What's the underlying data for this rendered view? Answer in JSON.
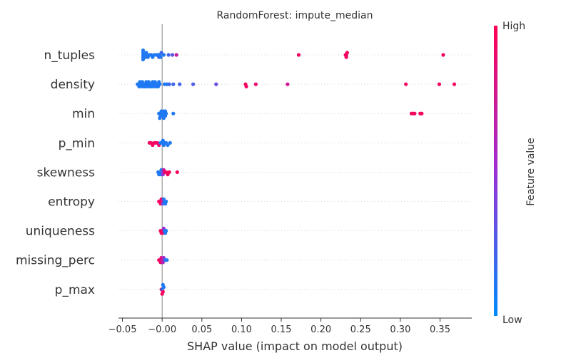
{
  "chart_data": {
    "type": "scatter",
    "title": "RandomForest: impute_median",
    "xlabel": "SHAP value (impact on model output)",
    "xlim": [
      -0.055,
      0.39
    ],
    "xticks": [
      -0.05,
      -0.0,
      0.05,
      0.1,
      0.15,
      0.2,
      0.25,
      0.3,
      0.35
    ],
    "xtick_labels": [
      "−0.05",
      "−0.00",
      "0.05",
      "0.10",
      "0.15",
      "0.20",
      "0.25",
      "0.30",
      "0.35"
    ],
    "colorbar": {
      "label": "Feature value",
      "high_label": "High",
      "low_label": "Low",
      "low_color": "#008bfb",
      "high_color": "#ff0052"
    },
    "features": [
      {
        "name": "n_tuples",
        "points": [
          {
            "x": -0.024,
            "v": 0.1
          },
          {
            "x": -0.024,
            "v": 0.1
          },
          {
            "x": -0.024,
            "v": 0.1
          },
          {
            "x": -0.024,
            "v": 0.1
          },
          {
            "x": -0.024,
            "v": 0.1
          },
          {
            "x": -0.022,
            "v": 0.1
          },
          {
            "x": -0.021,
            "v": 0.1
          },
          {
            "x": -0.02,
            "v": 0.1
          },
          {
            "x": -0.019,
            "v": 0.1
          },
          {
            "x": -0.018,
            "v": 0.1
          },
          {
            "x": -0.016,
            "v": 0.1
          },
          {
            "x": -0.014,
            "v": 0.1
          },
          {
            "x": -0.012,
            "v": 0.1
          },
          {
            "x": -0.01,
            "v": 0.1
          },
          {
            "x": -0.007,
            "v": 0.1
          },
          {
            "x": -0.005,
            "v": 0.1
          },
          {
            "x": -0.004,
            "v": 0.2
          },
          {
            "x": -0.003,
            "v": 0.1
          },
          {
            "x": -0.002,
            "v": 0.1
          },
          {
            "x": -0.001,
            "v": 0.2
          },
          {
            "x": 0.002,
            "v": 0.1
          },
          {
            "x": 0.008,
            "v": 0.2
          },
          {
            "x": 0.013,
            "v": 0.3
          },
          {
            "x": 0.018,
            "v": 0.7
          },
          {
            "x": 0.172,
            "v": 0.95
          },
          {
            "x": 0.231,
            "v": 0.95
          },
          {
            "x": 0.232,
            "v": 0.95
          },
          {
            "x": 0.232,
            "v": 0.95
          },
          {
            "x": 0.233,
            "v": 0.95
          },
          {
            "x": 0.354,
            "v": 0.95
          }
        ]
      },
      {
        "name": "density",
        "points": [
          {
            "x": -0.031,
            "v": 0.1
          },
          {
            "x": -0.03,
            "v": 0.1
          },
          {
            "x": -0.029,
            "v": 0.1
          },
          {
            "x": -0.028,
            "v": 0.1
          },
          {
            "x": -0.027,
            "v": 0.1
          },
          {
            "x": -0.026,
            "v": 0.1
          },
          {
            "x": -0.025,
            "v": 0.1
          },
          {
            "x": -0.024,
            "v": 0.1
          },
          {
            "x": -0.023,
            "v": 0.1
          },
          {
            "x": -0.022,
            "v": 0.1
          },
          {
            "x": -0.021,
            "v": 0.1
          },
          {
            "x": -0.02,
            "v": 0.1
          },
          {
            "x": -0.019,
            "v": 0.1
          },
          {
            "x": -0.018,
            "v": 0.1
          },
          {
            "x": -0.017,
            "v": 0.1
          },
          {
            "x": -0.016,
            "v": 0.1
          },
          {
            "x": -0.015,
            "v": 0.1
          },
          {
            "x": -0.014,
            "v": 0.1
          },
          {
            "x": -0.013,
            "v": 0.1
          },
          {
            "x": -0.012,
            "v": 0.1
          },
          {
            "x": -0.011,
            "v": 0.1
          },
          {
            "x": -0.01,
            "v": 0.1
          },
          {
            "x": -0.009,
            "v": 0.1
          },
          {
            "x": -0.008,
            "v": 0.1
          },
          {
            "x": -0.007,
            "v": 0.1
          },
          {
            "x": -0.006,
            "v": 0.1
          },
          {
            "x": -0.005,
            "v": 0.1
          },
          {
            "x": -0.004,
            "v": 0.1
          },
          {
            "x": -0.003,
            "v": 0.1
          },
          {
            "x": 0.003,
            "v": 0.1
          },
          {
            "x": 0.006,
            "v": 0.1
          },
          {
            "x": 0.009,
            "v": 0.2
          },
          {
            "x": 0.014,
            "v": 0.2
          },
          {
            "x": 0.022,
            "v": 0.2
          },
          {
            "x": 0.039,
            "v": 0.25
          },
          {
            "x": 0.068,
            "v": 0.35
          },
          {
            "x": 0.105,
            "v": 0.95
          },
          {
            "x": 0.106,
            "v": 0.95
          },
          {
            "x": 0.118,
            "v": 0.9
          },
          {
            "x": 0.158,
            "v": 0.75
          },
          {
            "x": 0.307,
            "v": 0.95
          },
          {
            "x": 0.349,
            "v": 0.95
          },
          {
            "x": 0.368,
            "v": 0.95
          }
        ]
      },
      {
        "name": "min",
        "points": [
          {
            "x": -0.004,
            "v": 0.1
          },
          {
            "x": -0.003,
            "v": 0.1
          },
          {
            "x": -0.002,
            "v": 0.1
          },
          {
            "x": -0.001,
            "v": 0.1
          },
          {
            "x": 0.0,
            "v": 0.1
          },
          {
            "x": 0.001,
            "v": 0.1
          },
          {
            "x": 0.002,
            "v": 0.1
          },
          {
            "x": 0.003,
            "v": 0.1
          },
          {
            "x": 0.004,
            "v": 0.1
          },
          {
            "x": 0.005,
            "v": 0.1
          },
          {
            "x": -0.003,
            "v": 0.1
          },
          {
            "x": 0.002,
            "v": 0.1
          },
          {
            "x": 0.004,
            "v": 0.1
          },
          {
            "x": 0.014,
            "v": 0.1
          },
          {
            "x": 0.314,
            "v": 0.95
          },
          {
            "x": 0.316,
            "v": 0.95
          },
          {
            "x": 0.318,
            "v": 0.95
          },
          {
            "x": 0.325,
            "v": 0.95
          },
          {
            "x": 0.327,
            "v": 0.95
          }
        ]
      },
      {
        "name": "p_min",
        "points": [
          {
            "x": -0.016,
            "v": 0.95
          },
          {
            "x": -0.014,
            "v": 0.95
          },
          {
            "x": -0.012,
            "v": 0.95
          },
          {
            "x": -0.01,
            "v": 0.95
          },
          {
            "x": -0.008,
            "v": 0.95
          },
          {
            "x": -0.006,
            "v": 0.9
          },
          {
            "x": -0.004,
            "v": 0.9
          },
          {
            "x": -0.002,
            "v": 0.1
          },
          {
            "x": 0.0,
            "v": 0.1
          },
          {
            "x": 0.002,
            "v": 0.1
          },
          {
            "x": 0.003,
            "v": 0.1
          },
          {
            "x": 0.005,
            "v": 0.1
          },
          {
            "x": 0.007,
            "v": 0.1
          },
          {
            "x": 0.01,
            "v": 0.1
          },
          {
            "x": 0.001,
            "v": 0.1
          }
        ]
      },
      {
        "name": "skewness",
        "points": [
          {
            "x": -0.005,
            "v": 0.1
          },
          {
            "x": -0.004,
            "v": 0.1
          },
          {
            "x": -0.003,
            "v": 0.1
          },
          {
            "x": -0.002,
            "v": 0.1
          },
          {
            "x": -0.001,
            "v": 0.1
          },
          {
            "x": 0.0,
            "v": 0.3
          },
          {
            "x": 0.001,
            "v": 0.5
          },
          {
            "x": 0.002,
            "v": 0.7
          },
          {
            "x": 0.003,
            "v": 0.9
          },
          {
            "x": 0.005,
            "v": 0.95
          },
          {
            "x": 0.007,
            "v": 0.95
          },
          {
            "x": 0.009,
            "v": 0.95
          },
          {
            "x": 0.019,
            "v": 0.95
          }
        ]
      },
      {
        "name": "entropy",
        "points": [
          {
            "x": -0.004,
            "v": 0.95
          },
          {
            "x": -0.003,
            "v": 0.95
          },
          {
            "x": -0.002,
            "v": 0.95
          },
          {
            "x": -0.001,
            "v": 0.9
          },
          {
            "x": 0.0,
            "v": 0.8
          },
          {
            "x": 0.001,
            "v": 0.3
          },
          {
            "x": 0.002,
            "v": 0.1
          },
          {
            "x": 0.003,
            "v": 0.1
          },
          {
            "x": 0.004,
            "v": 0.1
          },
          {
            "x": 0.005,
            "v": 0.1
          }
        ]
      },
      {
        "name": "uniqueness",
        "points": [
          {
            "x": -0.002,
            "v": 0.95
          },
          {
            "x": -0.001,
            "v": 0.95
          },
          {
            "x": 0.0,
            "v": 0.95
          },
          {
            "x": 0.001,
            "v": 0.9
          },
          {
            "x": 0.002,
            "v": 0.5
          },
          {
            "x": 0.003,
            "v": 0.1
          },
          {
            "x": 0.004,
            "v": 0.1
          },
          {
            "x": 0.005,
            "v": 0.1
          }
        ]
      },
      {
        "name": "missing_perc",
        "points": [
          {
            "x": -0.004,
            "v": 0.95
          },
          {
            "x": -0.003,
            "v": 0.95
          },
          {
            "x": -0.002,
            "v": 0.9
          },
          {
            "x": -0.001,
            "v": 0.85
          },
          {
            "x": 0.0,
            "v": 0.7
          },
          {
            "x": 0.001,
            "v": 0.6
          },
          {
            "x": 0.002,
            "v": 0.5
          },
          {
            "x": 0.004,
            "v": 0.1
          },
          {
            "x": 0.006,
            "v": 0.1
          }
        ]
      },
      {
        "name": "p_max",
        "points": [
          {
            "x": -0.001,
            "v": 0.95
          },
          {
            "x": 0.0,
            "v": 0.1
          },
          {
            "x": 0.001,
            "v": 0.95
          },
          {
            "x": 0.002,
            "v": 0.1
          },
          {
            "x": 0.0,
            "v": 0.95
          },
          {
            "x": 0.001,
            "v": 0.1
          }
        ]
      }
    ]
  }
}
